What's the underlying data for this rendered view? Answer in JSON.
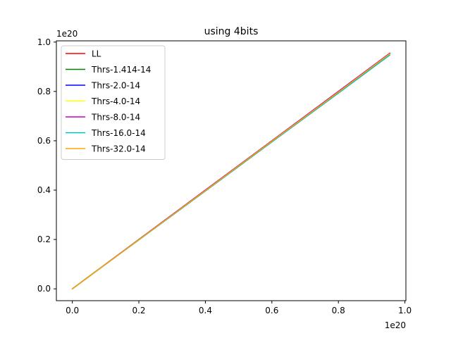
{
  "chart_data": {
    "type": "line",
    "title": "using 4bits",
    "xlabel": "",
    "ylabel": "",
    "x_offset_text": "1e20",
    "y_offset_text": "1e20",
    "x_scale_factor": 1e+20,
    "y_scale_factor": 1e+20,
    "xlim": [
      -0.048,
      1.003
    ],
    "ylim": [
      -0.048,
      1.005
    ],
    "x_ticks": [
      0.0,
      0.2,
      0.4,
      0.6,
      0.8,
      1.0
    ],
    "x_tick_labels": [
      "0.0",
      "0.2",
      "0.4",
      "0.6",
      "0.8",
      "1.0"
    ],
    "y_ticks": [
      0.0,
      0.2,
      0.4,
      0.6,
      0.8,
      1.0
    ],
    "y_tick_labels": [
      "0.0",
      "0.2",
      "0.4",
      "0.6",
      "0.8",
      "1.0"
    ],
    "grid": false,
    "legend_position": "top-left",
    "series": [
      {
        "name": "LL",
        "color": "#ff0000",
        "x": [
          0.0,
          0.2,
          0.4,
          0.6,
          0.8,
          0.955
        ],
        "y": [
          0.0,
          0.2,
          0.4,
          0.6,
          0.8,
          0.955
        ]
      },
      {
        "name": "Thrs-1.414-14",
        "color": "#008000",
        "x": [
          0.0,
          0.2,
          0.4,
          0.6,
          0.8,
          0.955
        ],
        "y": [
          0.0,
          0.2,
          0.4,
          0.6,
          0.8,
          0.955
        ]
      },
      {
        "name": "Thrs-2.0-14",
        "color": "#0000ff",
        "x": [
          0.0,
          0.2,
          0.4,
          0.6,
          0.8,
          0.955
        ],
        "y": [
          0.0,
          0.2,
          0.4,
          0.6,
          0.8,
          0.955
        ]
      },
      {
        "name": "Thrs-4.0-14",
        "color": "#ffff00",
        "x": [
          0.0,
          0.2,
          0.4,
          0.6,
          0.8,
          0.955
        ],
        "y": [
          0.0,
          0.2,
          0.4,
          0.6,
          0.8,
          0.955
        ]
      },
      {
        "name": "Thrs-8.0-14",
        "color": "#bf00bf",
        "x": [
          0.0,
          0.2,
          0.4,
          0.6,
          0.8,
          0.955
        ],
        "y": [
          0.0,
          0.2,
          0.4,
          0.6,
          0.8,
          0.955
        ]
      },
      {
        "name": "Thrs-16.0-14",
        "color": "#00bfbf",
        "x": [
          0.0,
          0.2,
          0.4,
          0.6,
          0.8,
          0.955
        ],
        "y": [
          0.0,
          0.198,
          0.396,
          0.595,
          0.793,
          0.948
        ]
      },
      {
        "name": "Thrs-32.0-14",
        "color": "#ffa500",
        "x": [
          0.0,
          0.2,
          0.4,
          0.6,
          0.8,
          0.955
        ],
        "y": [
          0.0,
          0.199,
          0.398,
          0.598,
          0.797,
          0.953
        ]
      }
    ]
  }
}
